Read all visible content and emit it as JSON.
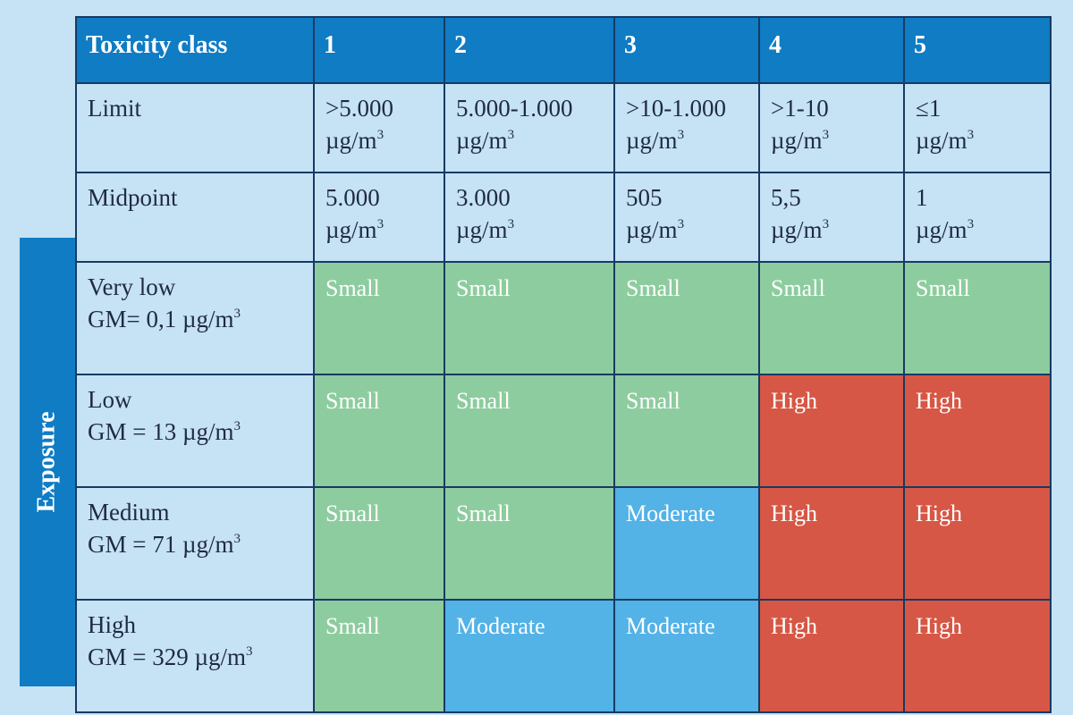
{
  "header": {
    "toxicity_class_label": "Toxicity class",
    "classes": [
      "1",
      "2",
      "3",
      "4",
      "5"
    ]
  },
  "rows": {
    "limit": {
      "label": "Limit",
      "values": [
        ">5.000",
        "5.000-1.000",
        ">10-1.000",
        ">1-10",
        "≤1"
      ],
      "unit": "µg/m",
      "unit_sup": "3"
    },
    "midpoint": {
      "label": "Midpoint",
      "values": [
        "5.000",
        "3.000",
        "505",
        "5,5",
        "1"
      ],
      "unit": "µg/m",
      "unit_sup": "3"
    }
  },
  "exposure": {
    "axis_label": "Exposure",
    "levels": [
      {
        "name": "Very low",
        "gm": "GM= 0,1 µg/m",
        "gm_sup": "3",
        "risks": [
          "Small",
          "Small",
          "Small",
          "Small",
          "Small"
        ]
      },
      {
        "name": "Low",
        "gm": "GM = 13 µg/m",
        "gm_sup": "3",
        "risks": [
          "Small",
          "Small",
          "Small",
          "High",
          "High"
        ]
      },
      {
        "name": "Medium",
        "gm": "GM = 71 µg/m",
        "gm_sup": "3",
        "risks": [
          "Small",
          "Small",
          "Moderate",
          "High",
          "High"
        ]
      },
      {
        "name": "High",
        "gm": "GM = 329 µg/m",
        "gm_sup": "3",
        "risks": [
          "Small",
          "Moderate",
          "Moderate",
          "High",
          "High"
        ]
      }
    ]
  },
  "colors": {
    "header_blue": "#0f7cc4",
    "background": "#c6e2f5",
    "small": "#8dcc9e",
    "moderate": "#53b2e6",
    "high": "#d65745",
    "grid": "#173a63"
  }
}
